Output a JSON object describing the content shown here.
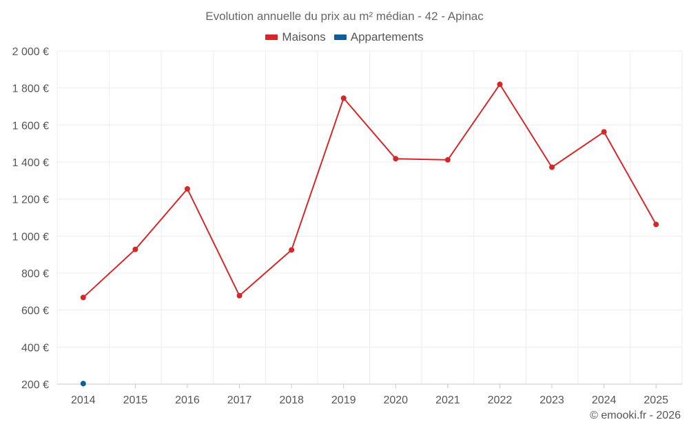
{
  "chart_data": {
    "type": "line",
    "title": "Evolution annuelle du prix au m² médian - 42 - Apinac",
    "x": [
      "2014",
      "2015",
      "2016",
      "2017",
      "2018",
      "2019",
      "2020",
      "2021",
      "2022",
      "2023",
      "2024",
      "2025"
    ],
    "y_ticks": [
      200,
      400,
      600,
      800,
      1000,
      1200,
      1400,
      1600,
      1800,
      2000
    ],
    "y_tick_labels": [
      "200 €",
      "400 €",
      "600 €",
      "800 €",
      "1 000 €",
      "1 200 €",
      "1 400 €",
      "1 600 €",
      "1 800 €",
      "2 000 €"
    ],
    "ylim": [
      200,
      2000
    ],
    "grid": true,
    "legend_position": "top-center",
    "series": [
      {
        "name": "Maisons",
        "color": "#d62728",
        "values": [
          668,
          928,
          1255,
          678,
          925,
          1745,
          1418,
          1412,
          1820,
          1372,
          1563,
          1063
        ]
      },
      {
        "name": "Appartements",
        "color": "#0b5e99",
        "values": [
          203,
          null,
          null,
          null,
          null,
          null,
          null,
          null,
          null,
          null,
          null,
          null
        ]
      }
    ]
  },
  "footer": {
    "credit": "© emooki.fr - 2026"
  }
}
